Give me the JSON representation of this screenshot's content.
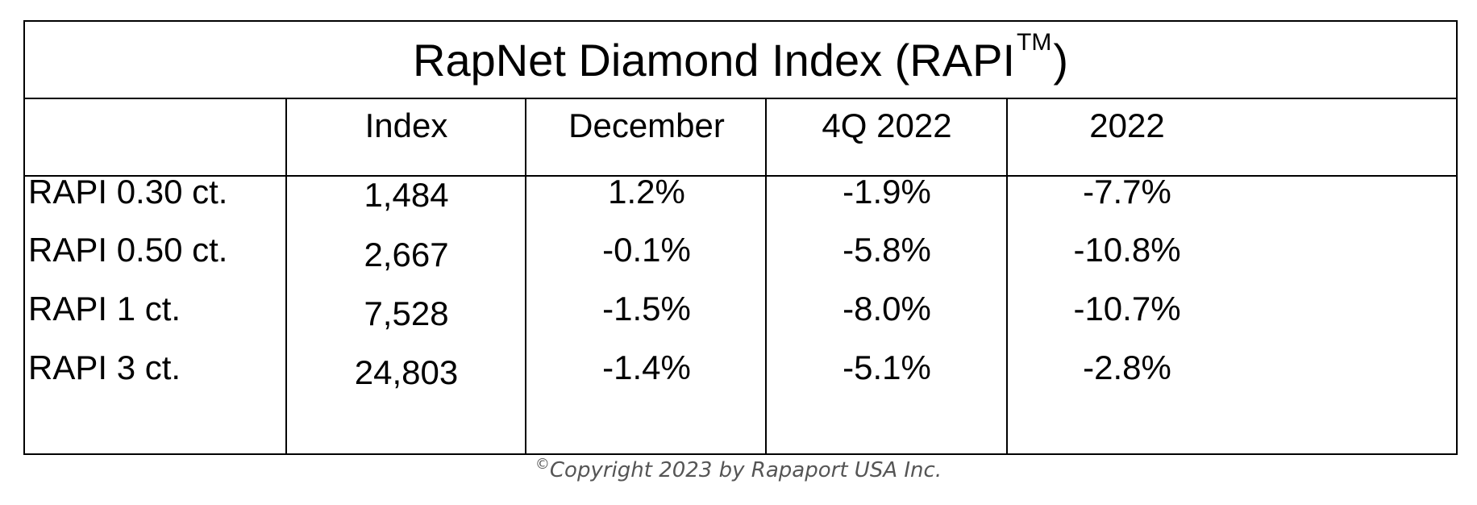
{
  "chart_data": {
    "type": "table",
    "title": "RapNet Diamond Index (RAPI",
    "title_trademark": "TM",
    "title_close": ")",
    "columns": [
      "",
      "Index",
      "December",
      "4Q 2022",
      "2022"
    ],
    "rows": [
      {
        "label": "RAPI 0.30 ct.",
        "index": "1,484",
        "december": "1.2%",
        "q4_2022": "-1.9%",
        "y2022": "-7.7%"
      },
      {
        "label": "RAPI 0.50 ct.",
        "index": "2,667",
        "december": "-0.1%",
        "q4_2022": "-5.8%",
        "y2022": "-10.8%"
      },
      {
        "label": "RAPI 1 ct.",
        "index": "7,528",
        "december": "-1.5%",
        "q4_2022": "-8.0%",
        "y2022": "-10.7%"
      },
      {
        "label": "RAPI 3 ct.",
        "index": "24,803",
        "december": "-1.4%",
        "q4_2022": "-5.1%",
        "y2022": "-2.8%"
      }
    ]
  },
  "copyright": {
    "symbol": "©",
    "text": "Copyright 2023 by Rapaport USA Inc."
  }
}
